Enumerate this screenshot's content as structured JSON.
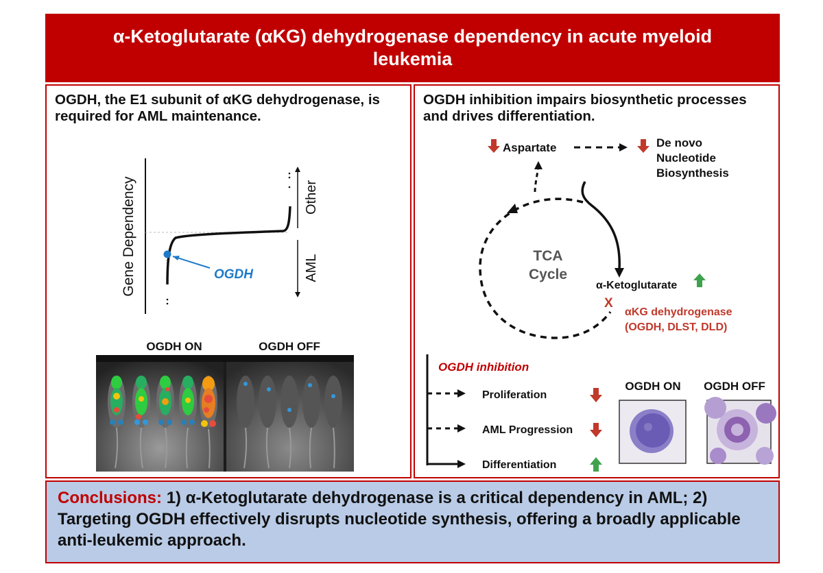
{
  "title": "α-Ketoglutarate (αKG) dehydrogenase dependency in acute myeloid leukemia",
  "left_panel": {
    "heading": "OGDH, the E1 subunit of αKG dehydrogenase, is required for AML maintenance.",
    "plot": {
      "y_label": "Gene Dependency",
      "upper_group": "Other",
      "lower_group": "AML",
      "highlight_gene": "OGDH"
    },
    "images": {
      "label_on": "OGDH ON",
      "label_off": "OGDH OFF"
    }
  },
  "right_panel": {
    "heading": "OGDH inhibition impairs biosynthetic processes and drives differentiation.",
    "pathway": {
      "aspartate": "Aspartate",
      "nucleotide_line1": "De novo",
      "nucleotide_line2": "Nucleotide",
      "nucleotide_line3": "Biosynthesis",
      "cycle_line1": "TCA",
      "cycle_line2": "Cycle",
      "akg": "α-Ketoglutarate",
      "block_mark": "X",
      "enzyme_line1": "αKG dehydrogenase",
      "enzyme_line2": "(OGDH, DLST, DLD)"
    },
    "effects": {
      "title": "OGDH inhibition",
      "items": [
        {
          "label": "Proliferation",
          "direction": "down"
        },
        {
          "label": "AML Progression",
          "direction": "down"
        },
        {
          "label": "Differentiation",
          "direction": "up"
        }
      ]
    },
    "cells": {
      "label_on": "OGDH ON",
      "label_off": "OGDH OFF"
    },
    "colors": {
      "down_arrow": "#c0392b",
      "up_arrow": "#3fa34d",
      "enzyme_text": "#c0392b"
    }
  },
  "conclusions": {
    "label": "Conclusions:",
    "text": "1) α-Ketoglutarate dehydrogenase is a critical dependency in AML;  2) Targeting OGDH effectively disrupts nucleotide synthesis, offering a broadly applicable anti-leukemic approach."
  }
}
